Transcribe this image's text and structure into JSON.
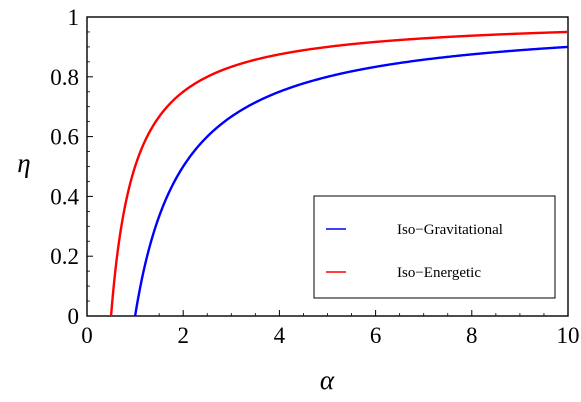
{
  "chart_data": {
    "type": "line",
    "xlabel": "α",
    "ylabel": "η",
    "xlim": [
      0,
      10
    ],
    "ylim": [
      0,
      1
    ],
    "x_ticks": [
      0,
      2,
      4,
      6,
      8,
      10
    ],
    "y_ticks": [
      0,
      0.2,
      0.4,
      0.6,
      0.8,
      1
    ],
    "x_tick_labels": [
      "0",
      "2",
      "4",
      "6",
      "8",
      "10"
    ],
    "y_tick_labels": [
      "0",
      "0.2",
      "0.4",
      "0.6",
      "0.8",
      "1"
    ],
    "grid": false,
    "legend_position": "bottom-right",
    "series": [
      {
        "name": "Iso−Gravitational",
        "color": "#0000ff",
        "x": [
          1.0,
          1.25,
          1.5,
          2.0,
          2.5,
          3.0,
          4.0,
          5.0,
          6.0,
          7.0,
          8.0,
          9.0,
          10.0
        ],
        "y": [
          0.0,
          0.2,
          0.333,
          0.5,
          0.6,
          0.667,
          0.75,
          0.8,
          0.833,
          0.857,
          0.875,
          0.889,
          0.9
        ]
      },
      {
        "name": "Iso−Energetic",
        "color": "#ff0000",
        "x": [
          0.5,
          0.625,
          0.75,
          1.0,
          1.25,
          1.5,
          2.0,
          3.0,
          4.0,
          5.0,
          6.0,
          8.0,
          10.0
        ],
        "y": [
          0.0,
          0.2,
          0.333,
          0.5,
          0.6,
          0.667,
          0.75,
          0.833,
          0.875,
          0.9,
          0.917,
          0.938,
          0.95
        ]
      }
    ]
  }
}
